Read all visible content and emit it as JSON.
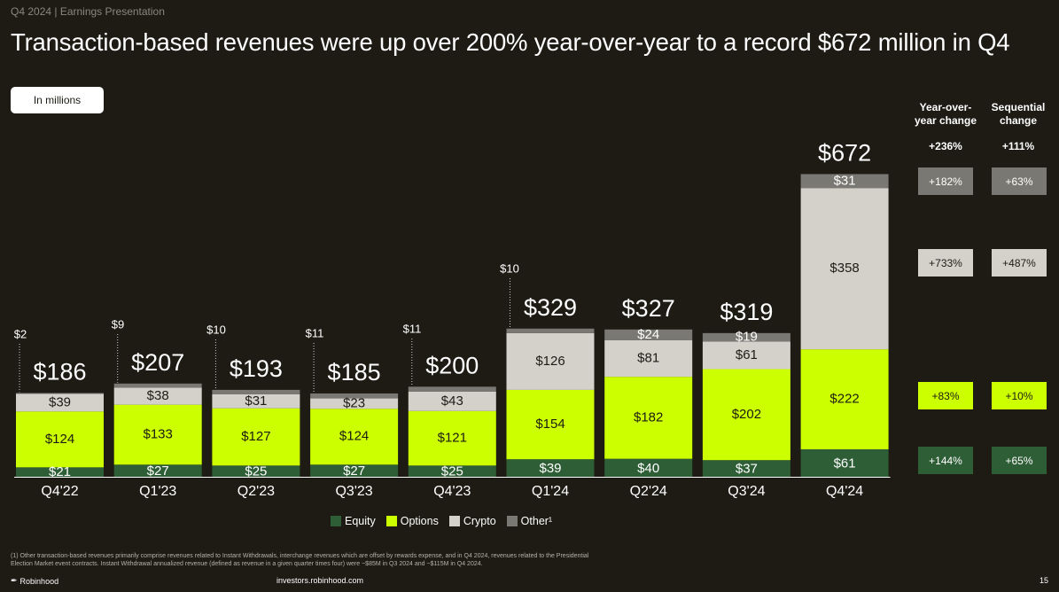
{
  "header": {
    "subtitle": "Q4 2024 | Earnings Presentation",
    "title": "Transaction-based revenues were up over 200% year-over-year to a record $672 million in Q4",
    "unit_label": "In millions"
  },
  "chart_data": {
    "type": "bar",
    "stacked": true,
    "categories": [
      "Q4'22",
      "Q1'23",
      "Q2'23",
      "Q3'23",
      "Q4'23",
      "Q1'24",
      "Q2'24",
      "Q3'24",
      "Q4'24"
    ],
    "series": [
      {
        "name": "Equity",
        "color": "#2e5e36",
        "values": [
          21,
          27,
          25,
          27,
          25,
          39,
          40,
          37,
          61
        ]
      },
      {
        "name": "Options",
        "color": "#ccff00",
        "values": [
          124,
          133,
          127,
          124,
          121,
          154,
          182,
          202,
          222
        ]
      },
      {
        "name": "Crypto",
        "color": "#d4d1cb",
        "values": [
          39,
          38,
          31,
          23,
          43,
          126,
          81,
          61,
          358
        ]
      },
      {
        "name": "Other¹",
        "color": "#7a7872",
        "values": [
          2,
          9,
          10,
          11,
          11,
          10,
          24,
          19,
          31
        ]
      }
    ],
    "totals": [
      186,
      207,
      193,
      185,
      200,
      329,
      327,
      319,
      672
    ],
    "labels": {
      "equity": [
        "$21",
        "$27",
        "$25",
        "$27",
        "$25",
        "$39",
        "$40",
        "$37",
        "$61"
      ],
      "options": [
        "$124",
        "$133",
        "$127",
        "$124",
        "$121",
        "$154",
        "$182",
        "$202",
        "$222"
      ],
      "crypto": [
        "$39",
        "$38",
        "$31",
        "$23",
        "$43",
        "$126",
        "$81",
        "$61",
        "$358"
      ],
      "other": [
        "$2",
        "$9",
        "$10",
        "$11",
        "$11",
        "$10",
        "$24",
        "$19",
        "$31"
      ],
      "totals": [
        "$186",
        "$207",
        "$193",
        "$185",
        "$200",
        "$329",
        "$327",
        "$319",
        "$672"
      ]
    },
    "legend_position": "bottom",
    "grid": false
  },
  "changes": {
    "yoy_header": "Year-over-year change",
    "seq_header": "Sequential change",
    "total_yoy": "+236%",
    "total_seq": "+111%",
    "other_yoy": "+182%",
    "other_seq": "+63%",
    "crypto_yoy": "+733%",
    "crypto_seq": "+487%",
    "options_yoy": "+83%",
    "options_seq": "+10%",
    "equity_yoy": "+144%",
    "equity_seq": "+65%"
  },
  "legend": {
    "equity": "Equity",
    "options": "Options",
    "crypto": "Crypto",
    "other": "Other¹"
  },
  "footer": {
    "footnote": "(1) Other transaction-based revenues primarily comprise revenues related to Instant Withdrawals, interchange revenues which are offset by rewards expense, and in Q4 2024, revenues related to the Presidential Election Market event contracts. Instant Withdrawal annualized revenue (defined as revenue in a given quarter times four) were ~$85M in Q3 2024 and ~$115M in Q4 2024.",
    "brand": "Robinhood",
    "site": "investors.robinhood.com",
    "page": "15"
  },
  "colors": {
    "background": "#1d1b14",
    "equity": "#2e5e36",
    "options": "#ccff00",
    "crypto": "#d4d1cb",
    "other": "#7a7872"
  }
}
